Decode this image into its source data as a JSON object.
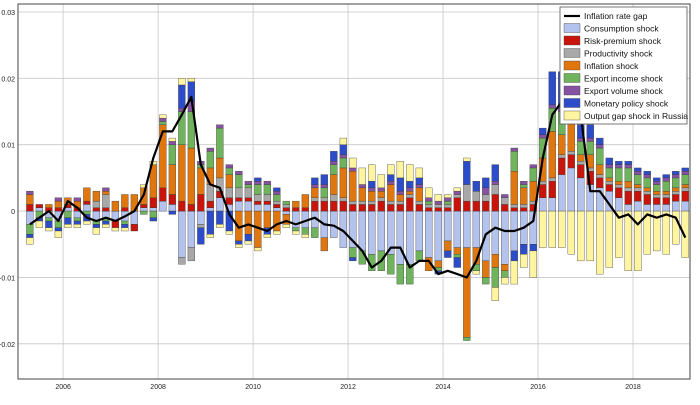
{
  "chart_data": {
    "type": "bar",
    "stacked": true,
    "x_ticks": [
      2006,
      2008,
      2010,
      2012,
      2014,
      2016,
      2018
    ],
    "x_tick_labels": [
      "2006",
      "2008",
      "2010",
      "2012",
      "2014",
      "2016",
      "2018"
    ],
    "y_ticks": [
      -0.02,
      -0.01,
      0,
      0.01,
      0.02,
      0.03
    ],
    "y_tick_labels": [
      "-0.02",
      "-0.01",
      "0",
      "0.01",
      "0.02",
      "0.03"
    ],
    "ylim": [
      -0.0253,
      0.0312
    ],
    "xlim": [
      2005.05,
      2019.2
    ],
    "grid": true,
    "legend_position": "top-right",
    "line_series": {
      "name": "Inflation rate gap",
      "color": "#000000",
      "x": [
        2005.3,
        2005.5,
        2005.7,
        2005.9,
        2006.1,
        2006.3,
        2006.5,
        2006.7,
        2006.9,
        2007.1,
        2007.3,
        2007.5,
        2007.7,
        2007.9,
        2008.1,
        2008.3,
        2008.5,
        2008.7,
        2008.9,
        2009.1,
        2009.3,
        2009.5,
        2009.7,
        2009.9,
        2010.1,
        2010.3,
        2010.5,
        2010.7,
        2010.9,
        2011.1,
        2011.3,
        2011.5,
        2011.7,
        2011.9,
        2012.1,
        2012.3,
        2012.5,
        2012.7,
        2012.9,
        2013.1,
        2013.3,
        2013.5,
        2013.7,
        2013.9,
        2014.1,
        2014.3,
        2014.5,
        2014.7,
        2014.9,
        2015.1,
        2015.3,
        2015.5,
        2015.7,
        2015.9,
        2016.1,
        2016.3,
        2016.5,
        2016.7,
        2016.9,
        2017.1,
        2017.3,
        2017.5,
        2017.7,
        2017.9,
        2018.1,
        2018.3,
        2018.5,
        2018.7,
        2018.9,
        2019.1
      ],
      "y": [
        -0.002,
        -0.001,
        0.0,
        -0.0015,
        0.0015,
        0.0005,
        -0.001,
        -0.0015,
        -0.001,
        -0.0015,
        -0.0008,
        0.0,
        0.0025,
        0.008,
        0.012,
        0.012,
        0.0145,
        0.0172,
        0.007,
        0.004,
        0.0035,
        -0.0005,
        -0.0025,
        -0.002,
        -0.0025,
        -0.003,
        -0.002,
        -0.0015,
        -0.002,
        -0.0015,
        -0.001,
        -0.002,
        -0.0022,
        -0.003,
        -0.0045,
        -0.006,
        -0.0085,
        -0.0075,
        -0.0055,
        -0.0055,
        -0.0085,
        -0.0075,
        -0.0075,
        -0.0095,
        -0.009,
        -0.0095,
        -0.01,
        -0.0075,
        -0.0035,
        -0.0025,
        -0.003,
        -0.003,
        -0.0025,
        -0.0015,
        0.008,
        0.0145,
        0.0165,
        0.0165,
        0.0145,
        0.003,
        0.003,
        0.001,
        -0.001,
        -0.0005,
        -0.002,
        -0.0005,
        -0.001,
        -0.0005,
        -0.001,
        -0.004
      ]
    },
    "series": [
      {
        "name": "Consumption shock",
        "color": "#b4c3ee"
      },
      {
        "name": "Risk-premium shock",
        "color": "#c8140a"
      },
      {
        "name": "Productivity shock",
        "color": "#a8a8a8"
      },
      {
        "name": "Inflation shock",
        "color": "#e0770e"
      },
      {
        "name": "Export income shock",
        "color": "#70b35d"
      },
      {
        "name": "Export volume shock",
        "color": "#8652a1"
      },
      {
        "name": "Monetary policy shock",
        "color": "#2d4cc9"
      },
      {
        "name": "Output gap shock in Russia",
        "color": "#fff4a0"
      }
    ],
    "quarters": [
      {
        "x": 2005.3,
        "v": [
          -0.002,
          0.001,
          0,
          0.0015,
          -0.0015,
          0.0005,
          -0.0005,
          -0.001
        ]
      },
      {
        "x": 2005.5,
        "v": [
          0.0005,
          0.0005,
          0,
          0,
          -0.001,
          0,
          -0.0005,
          -0.001
        ]
      },
      {
        "x": 2005.7,
        "v": [
          -0.001,
          0.0005,
          0,
          0.0005,
          -0.0005,
          0,
          -0.001,
          -0.0005
        ]
      },
      {
        "x": 2005.9,
        "v": [
          -0.0015,
          0.0005,
          0,
          0.001,
          -0.001,
          0.0005,
          -0.0005,
          -0.001
        ]
      },
      {
        "x": 2006.1,
        "v": [
          0.0005,
          0.0005,
          0,
          0.001,
          -0.001,
          0,
          -0.001,
          -0.0005
        ]
      },
      {
        "x": 2006.3,
        "v": [
          -0.001,
          0.0005,
          0,
          0.001,
          -0.0005,
          0.0005,
          -0.0005,
          -0.0005
        ]
      },
      {
        "x": 2006.5,
        "v": [
          0.001,
          0.0005,
          0,
          0.002,
          -0.0005,
          0,
          -0.001,
          -0.0005
        ]
      },
      {
        "x": 2006.7,
        "v": [
          -0.0015,
          0.0005,
          0.001,
          0.0015,
          -0.0005,
          0,
          -0.0005,
          -0.001
        ]
      },
      {
        "x": 2006.9,
        "v": [
          -0.001,
          0.0005,
          0.002,
          0.0005,
          -0.0005,
          0.0005,
          -0.0005,
          -0.0005
        ]
      },
      {
        "x": 2007.1,
        "v": [
          -0.0015,
          -0.001,
          0,
          0.0015,
          0,
          0,
          0,
          -0.0005
        ]
      },
      {
        "x": 2007.3,
        "v": [
          -0.0015,
          0.0005,
          0,
          0.002,
          -0.0005,
          0,
          -0.0005,
          -0.0005
        ]
      },
      {
        "x": 2007.5,
        "v": [
          -0.002,
          -0.001,
          0,
          0.0025,
          0,
          0,
          0,
          0
        ]
      },
      {
        "x": 2007.7,
        "v": [
          0.0005,
          0.0005,
          0,
          0.0025,
          -0.0005,
          0,
          0,
          0.0005
        ]
      },
      {
        "x": 2007.9,
        "v": [
          0.0005,
          0.0015,
          0,
          0.005,
          -0.001,
          0,
          -0.0005,
          0.0005
        ]
      },
      {
        "x": 2008.1,
        "v": [
          0.0015,
          0.002,
          0,
          0.0095,
          0.0005,
          0.0005,
          0,
          0.0005
        ]
      },
      {
        "x": 2008.3,
        "v": [
          0.001,
          0.0015,
          0,
          0.0045,
          0.003,
          0.0005,
          -0.0005,
          0.0005
        ]
      },
      {
        "x": 2008.5,
        "v": [
          -0.007,
          0.0015,
          -0.001,
          0.0085,
          0.005,
          0.0005,
          0.0035,
          0.001
        ]
      },
      {
        "x": 2008.7,
        "v": [
          -0.0055,
          0.001,
          -0.002,
          0.0085,
          0.0055,
          0.0015,
          0.003,
          0.0005
        ]
      },
      {
        "x": 2008.9,
        "v": [
          -0.002,
          0.0025,
          -0.0005,
          0.004,
          0.0005,
          0.0005,
          -0.0025,
          0
        ]
      },
      {
        "x": 2009.1,
        "v": [
          0.0005,
          0.001,
          0.0025,
          0.0025,
          0.0025,
          0.0005,
          -0.0035,
          -0.0005
        ]
      },
      {
        "x": 2009.3,
        "v": [
          0.002,
          0.001,
          0.002,
          0.003,
          0.0045,
          0.0005,
          -0.002,
          -0.0005
        ]
      },
      {
        "x": 2009.5,
        "v": [
          0.001,
          0.001,
          0.0015,
          0.002,
          0.001,
          0.0005,
          -0.003,
          -0.0005
        ]
      },
      {
        "x": 2009.7,
        "v": [
          0.0015,
          0.0005,
          0.0015,
          -0.0045,
          0.002,
          0.0005,
          -0.0005,
          -0.0005
        ]
      },
      {
        "x": 2009.9,
        "v": [
          0.0015,
          0.0005,
          0.0015,
          -0.0035,
          0.0005,
          0.0005,
          -0.001,
          -0.0005
        ]
      },
      {
        "x": 2010.1,
        "v": [
          0.001,
          0.0005,
          0.001,
          -0.0055,
          0.0015,
          0.0005,
          0.0005,
          -0.0005
        ]
      },
      {
        "x": 2010.3,
        "v": [
          0.001,
          0.0005,
          0.001,
          -0.0025,
          0.0015,
          0.0005,
          -0.001,
          -0.0005
        ]
      },
      {
        "x": 2010.5,
        "v": [
          0.0005,
          0.0005,
          0.0005,
          -0.003,
          0.001,
          0.0005,
          0.0005,
          -0.0005
        ]
      },
      {
        "x": 2010.7,
        "v": [
          -0.0005,
          0.0005,
          0.0005,
          -0.0015,
          0.0005,
          0,
          0,
          -0.0005
        ]
      },
      {
        "x": 2010.9,
        "v": [
          -0.0025,
          0.0005,
          0,
          0.001,
          -0.0005,
          0,
          0,
          -0.0005
        ]
      },
      {
        "x": 2011.1,
        "v": [
          -0.0025,
          0.0005,
          0,
          0.002,
          -0.001,
          0,
          0,
          -0.0005
        ]
      },
      {
        "x": 2011.3,
        "v": [
          -0.0025,
          0.0015,
          0.0005,
          0.0015,
          -0.0015,
          0.0005,
          0.001,
          0
        ]
      },
      {
        "x": 2011.5,
        "v": [
          -0.004,
          0.0015,
          0.0005,
          -0.002,
          0.0015,
          0.0005,
          0.0015,
          0
        ]
      },
      {
        "x": 2011.7,
        "v": [
          -0.004,
          0.0015,
          0.001,
          0.003,
          0.0015,
          0.0005,
          0.0015,
          0
        ]
      },
      {
        "x": 2011.9,
        "v": [
          -0.0055,
          0.0015,
          0.0005,
          0.0045,
          0.0015,
          0.0005,
          0.0015,
          0.001
        ]
      },
      {
        "x": 2012.1,
        "v": [
          -0.0055,
          0.001,
          0.0005,
          0.0045,
          -0.0015,
          0.0005,
          -0.0005,
          0.0015
        ]
      },
      {
        "x": 2012.3,
        "v": [
          -0.006,
          0.001,
          0.0005,
          0.002,
          -0.002,
          0.0005,
          0,
          0.0025
        ]
      },
      {
        "x": 2012.5,
        "v": [
          -0.0065,
          0.001,
          0.0005,
          0.0015,
          -0.0025,
          0.0005,
          0.001,
          0.0025
        ]
      },
      {
        "x": 2012.7,
        "v": [
          -0.006,
          0.0015,
          0.0005,
          0.001,
          -0.003,
          0.0005,
          0,
          0.002
        ]
      },
      {
        "x": 2012.9,
        "v": [
          -0.0065,
          0.001,
          0.0005,
          0.0025,
          -0.003,
          0.0005,
          0.001,
          0.0015
        ]
      },
      {
        "x": 2013.1,
        "v": [
          -0.008,
          0.001,
          0.0005,
          0.001,
          -0.003,
          0.0005,
          0.002,
          0.0025
        ]
      },
      {
        "x": 2013.3,
        "v": [
          -0.008,
          0.002,
          0.0005,
          0.0005,
          -0.003,
          0.0005,
          0.001,
          0.0025
        ]
      },
      {
        "x": 2013.5,
        "v": [
          -0.006,
          0.001,
          0.0005,
          0.002,
          -0.0015,
          0.0005,
          0.001,
          0.0015
        ]
      },
      {
        "x": 2013.7,
        "v": [
          -0.007,
          0.0005,
          0.0005,
          -0.002,
          0.0005,
          0.0005,
          0,
          0.0015
        ]
      },
      {
        "x": 2013.9,
        "v": [
          -0.0075,
          0.0005,
          0.0005,
          -0.001,
          -0.0005,
          0.0005,
          -0.0005,
          0.001
        ]
      },
      {
        "x": 2014.1,
        "v": [
          -0.0045,
          0.0005,
          0.0005,
          -0.0015,
          0.0005,
          0.0005,
          -0.001,
          0.0005
        ]
      },
      {
        "x": 2014.3,
        "v": [
          -0.0055,
          0.002,
          0.0005,
          -0.001,
          -0.0005,
          0.0005,
          -0.0015,
          0.0005
        ]
      },
      {
        "x": 2014.5,
        "v": [
          -0.0055,
          0.0015,
          0.0025,
          -0.0135,
          -0.0005,
          0,
          0.0035,
          0.0005
        ]
      },
      {
        "x": 2014.7,
        "v": [
          -0.0055,
          0.0015,
          0.0015,
          -0.0025,
          -0.001,
          0,
          0.0015,
          -0.0005
        ]
      },
      {
        "x": 2014.9,
        "v": [
          -0.0075,
          0.0015,
          0.001,
          -0.0025,
          -0.001,
          0.001,
          0.0015,
          0
        ]
      },
      {
        "x": 2015.1,
        "v": [
          -0.0065,
          0.0025,
          0.0015,
          -0.002,
          -0.003,
          0.0005,
          0.0025,
          -0.002
        ]
      },
      {
        "x": 2015.3,
        "v": [
          -0.008,
          0.001,
          0.001,
          -0.001,
          -0.001,
          0.0005,
          0,
          -0.001
        ]
      },
      {
        "x": 2015.5,
        "v": [
          -0.006,
          0.0005,
          0.0005,
          0.005,
          0.003,
          0.0005,
          -0.0015,
          -0.0035
        ]
      },
      {
        "x": 2015.7,
        "v": [
          -0.005,
          0.0005,
          0.0005,
          0.0025,
          0.0005,
          0.0005,
          -0.0015,
          -0.002
        ]
      },
      {
        "x": 2015.9,
        "v": [
          -0.005,
          0.001,
          0.0005,
          0.003,
          0.002,
          0.0005,
          -0.001,
          -0.004
        ]
      },
      {
        "x": 2016.1,
        "v": [
          0.002,
          0.002,
          0.0005,
          0.0035,
          0.003,
          0.0005,
          0.001,
          -0.0055
        ]
      },
      {
        "x": 2016.3,
        "v": [
          0.002,
          0.0025,
          0.0005,
          0.007,
          0.0035,
          0.0005,
          0.005,
          -0.0055
        ]
      },
      {
        "x": 2016.5,
        "v": [
          0.0055,
          0.0025,
          0.0005,
          0.003,
          0.0035,
          0.0005,
          0.0055,
          -0.0055
        ]
      },
      {
        "x": 2016.7,
        "v": [
          0.0065,
          0.002,
          0.0005,
          0.0045,
          0.002,
          0.0005,
          0.003,
          -0.0065
        ]
      },
      {
        "x": 2016.9,
        "v": [
          0.005,
          0.002,
          0.0005,
          0.001,
          0.002,
          0.0005,
          0.002,
          -0.0075
        ]
      },
      {
        "x": 2017.1,
        "v": [
          0.004,
          0.002,
          0.0005,
          0.002,
          0.002,
          0.0005,
          0.002,
          -0.0075
        ]
      },
      {
        "x": 2017.3,
        "v": [
          0.0035,
          0.0015,
          0.0005,
          0.0015,
          0.0025,
          0.0005,
          0.001,
          -0.0095
        ]
      },
      {
        "x": 2017.5,
        "v": [
          0.003,
          0.001,
          0.0005,
          0.0005,
          0.0015,
          0.0005,
          0.001,
          -0.0085
        ]
      },
      {
        "x": 2017.7,
        "v": [
          0.002,
          0.0015,
          0.0005,
          0.0005,
          0.002,
          0.0005,
          0.0005,
          -0.007
        ]
      },
      {
        "x": 2017.9,
        "v": [
          0.001,
          0.002,
          0.0005,
          0.001,
          0.002,
          0.0005,
          0.0005,
          -0.009
        ]
      },
      {
        "x": 2018.1,
        "v": [
          0.0015,
          0.0015,
          0.0005,
          0.0005,
          0.0015,
          0.0005,
          0.0005,
          -0.009
        ]
      },
      {
        "x": 2018.3,
        "v": [
          0.001,
          0.0015,
          0.0005,
          0.0005,
          0.0015,
          0.0005,
          0.0005,
          -0.0065
        ]
      },
      {
        "x": 2018.5,
        "v": [
          0.001,
          0.001,
          0.0005,
          0.0005,
          0.001,
          0.0005,
          0.0005,
          -0.006
        ]
      },
      {
        "x": 2018.7,
        "v": [
          0.001,
          0.001,
          0.0005,
          0.0005,
          0.0015,
          0.0005,
          0.0005,
          -0.0065
        ]
      },
      {
        "x": 2018.9,
        "v": [
          0.0015,
          0.001,
          0.0005,
          0.0005,
          0.0015,
          0.0005,
          0.0005,
          -0.005
        ]
      },
      {
        "x": 2019.1,
        "v": [
          0.0015,
          0.0015,
          0.0005,
          0.0005,
          0.0015,
          0.0005,
          0.0005,
          -0.007
        ]
      }
    ]
  }
}
